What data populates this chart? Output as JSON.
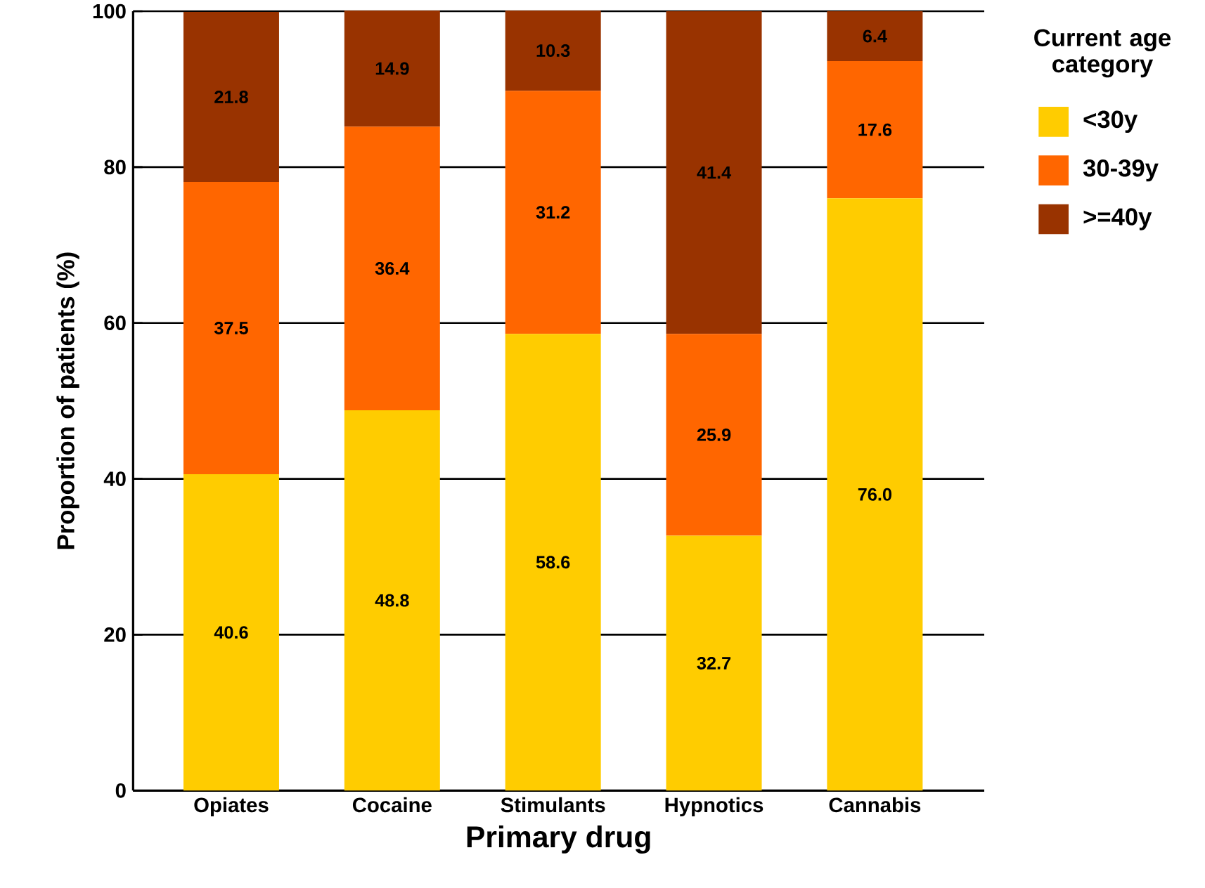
{
  "chart_data": {
    "type": "bar",
    "stacked": true,
    "xlabel": "Primary drug",
    "ylabel": "Proportion of patients (%)",
    "legend_title": "Current age category",
    "legend": "top right",
    "grid": "y",
    "categories": [
      "Opiates",
      "Cocaine",
      "Stimulants",
      "Hypnotics",
      "Cannabis"
    ],
    "ylim": [
      0,
      100
    ],
    "yticks": [
      0,
      20,
      40,
      60,
      80,
      100
    ],
    "series": [
      {
        "name": "<30y",
        "color": "#ffcc00",
        "values": [
          40.6,
          48.8,
          58.6,
          32.7,
          76.0
        ],
        "value_labels": [
          "40.6",
          "48.8",
          "58.6",
          "32.7",
          "76.0"
        ]
      },
      {
        "name": "30-39y",
        "color": "#ff6600",
        "values": [
          37.5,
          36.4,
          31.2,
          25.9,
          17.6
        ],
        "value_labels": [
          "37.5",
          "36.4",
          "31.2",
          "25.9",
          "17.6"
        ]
      },
      {
        "name": ">=40y",
        "color": "#993300",
        "values": [
          21.8,
          14.9,
          10.3,
          41.4,
          6.4
        ],
        "value_labels": [
          "21.8",
          "14.9",
          "10.3",
          "41.4",
          "6.4"
        ]
      }
    ]
  }
}
